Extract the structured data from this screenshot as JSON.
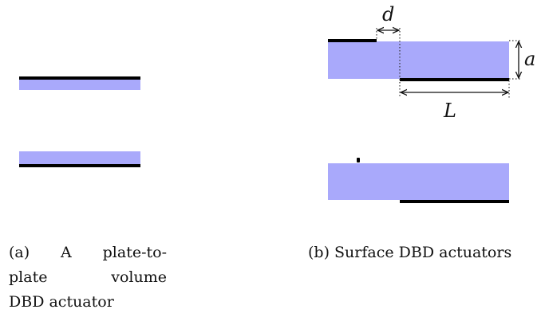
{
  "figure": {
    "colors": {
      "dielectric": "#a9a9fb",
      "electrode": "#000000",
      "guide": "#333333"
    },
    "icons": {
      "gap_dimension": "double-headed-arrow",
      "length_dimension": "double-headed-arrow",
      "thickness_dimension": "double-headed-arrow"
    },
    "labels": {
      "gap": "d",
      "thickness": "a",
      "length": "L"
    }
  },
  "captions": {
    "a_lines": [
      "(a) A plate-to-",
      "plate volume",
      "DBD actuator"
    ],
    "b": "(b) Surface DBD actuators"
  }
}
